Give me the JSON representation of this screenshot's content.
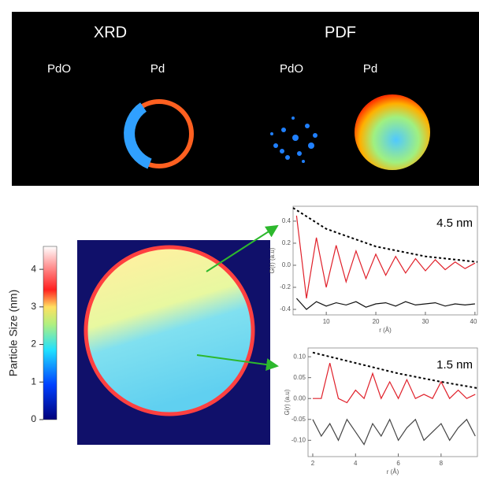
{
  "top": {
    "methods": [
      "XRD",
      "PDF"
    ],
    "phases": [
      "PdO",
      "Pd",
      "PdO",
      "Pd"
    ]
  },
  "colorbar": {
    "label": "Particle Size (nm)",
    "ylim": [
      0,
      4.61
    ],
    "yticks": [
      0,
      1,
      2,
      3,
      4
    ]
  },
  "plots": [
    {
      "annotation": "4.5 nm",
      "ylabel": "G(r) (a.u)",
      "xlabel": "r (Å)",
      "xlim": [
        3.3,
        40.5
      ],
      "ylim": [
        -0.45,
        0.535
      ],
      "xticks": [
        10,
        20,
        30,
        40
      ],
      "yticks": [
        0.4,
        0.2,
        {
          "value": 0,
          "label": "0.0"
        },
        -0.2,
        -0.4
      ],
      "series": [
        {
          "color": "#000000",
          "dash": true,
          "x": [
            3.3,
            10,
            20,
            30,
            40.5
          ],
          "values": [
            0.52,
            0.33,
            0.17,
            0.08,
            0.03
          ]
        },
        {
          "color": "#e0202a",
          "x": [
            4,
            6,
            8,
            10,
            12,
            14,
            16,
            18,
            20,
            22,
            24,
            26,
            28,
            30,
            32,
            34,
            36,
            38,
            40
          ],
          "values": [
            0.45,
            -0.3,
            0.25,
            -0.2,
            0.18,
            -0.15,
            0.13,
            -0.12,
            0.1,
            -0.09,
            0.08,
            -0.07,
            0.06,
            -0.05,
            0.05,
            -0.04,
            0.03,
            -0.03,
            0.02
          ]
        },
        {
          "color": "#111111",
          "x": [
            4,
            6,
            8,
            10,
            12,
            14,
            16,
            18,
            20,
            22,
            24,
            26,
            28,
            30,
            32,
            34,
            36,
            38,
            40
          ],
          "values": [
            -0.3,
            -0.4,
            -0.33,
            -0.37,
            -0.34,
            -0.36,
            -0.33,
            -0.38,
            -0.35,
            -0.34,
            -0.37,
            -0.33,
            -0.36,
            -0.35,
            -0.34,
            -0.37,
            -0.35,
            -0.36,
            -0.35
          ]
        }
      ]
    },
    {
      "annotation": "1.5 nm",
      "ylabel": "G(r) (a.u)",
      "xlabel": "r (Å)",
      "xlim": [
        1.78,
        9.7
      ],
      "ylim": [
        -0.139,
        0.121
      ],
      "xticks": [
        2,
        4,
        6,
        8
      ],
      "yticks": [
        {
          "value": 0.1,
          "label": "0.10"
        },
        0.05,
        {
          "value": 0,
          "label": "0.00"
        },
        -0.05,
        {
          "value": -0.1,
          "label": "-0.10"
        }
      ],
      "series": [
        {
          "color": "#000000",
          "dash": true,
          "x": [
            2,
            4,
            6,
            8,
            9.7
          ],
          "values": [
            0.11,
            0.085,
            0.06,
            0.04,
            0.025
          ]
        },
        {
          "color": "#e0202a",
          "x": [
            2.0,
            2.4,
            2.8,
            3.2,
            3.6,
            4.0,
            4.4,
            4.8,
            5.2,
            5.6,
            6.0,
            6.4,
            6.8,
            7.2,
            7.6,
            8.0,
            8.4,
            8.8,
            9.2,
            9.6
          ],
          "values": [
            0,
            0,
            0.085,
            0,
            -0.01,
            0.02,
            0,
            0.06,
            0,
            0.04,
            0,
            0.045,
            0,
            0.01,
            0,
            0.04,
            0,
            0.02,
            0,
            0.01
          ]
        },
        {
          "color": "#444444",
          "x": [
            2.0,
            2.4,
            2.8,
            3.2,
            3.6,
            4.0,
            4.4,
            4.8,
            5.2,
            5.6,
            6.0,
            6.4,
            6.8,
            7.2,
            7.6,
            8.0,
            8.4,
            8.8,
            9.2,
            9.6
          ],
          "values": [
            -0.05,
            -0.09,
            -0.06,
            -0.1,
            -0.05,
            -0.08,
            -0.11,
            -0.06,
            -0.09,
            -0.05,
            -0.1,
            -0.07,
            -0.05,
            -0.1,
            -0.08,
            -0.06,
            -0.1,
            -0.07,
            -0.05,
            -0.09
          ]
        }
      ]
    }
  ]
}
